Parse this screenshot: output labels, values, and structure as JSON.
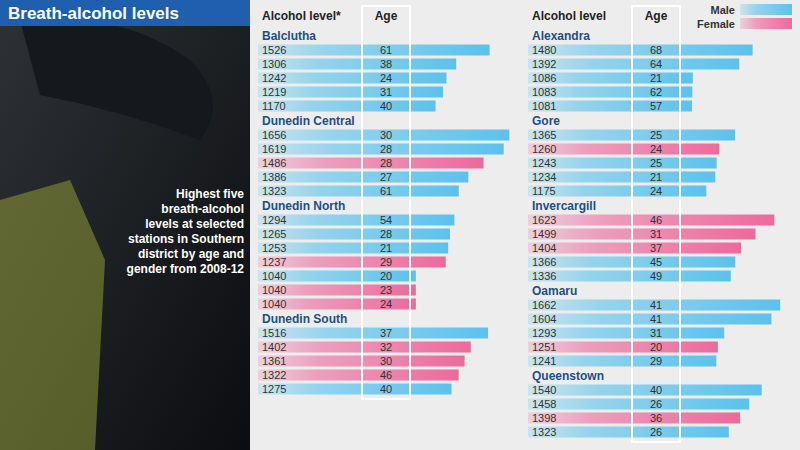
{
  "chart_data": {
    "type": "bar",
    "orientation": "horizontal",
    "title": "Breath-alcohol levels",
    "subtitle": "Highest five breath-alcohol levels at selected stations in Southern district by age and gender from 2008-12",
    "legend": "top-right",
    "data_labels": true,
    "tick_labels": false,
    "xlim": [
      0,
      1700
    ],
    "series": [
      {
        "name": "Male",
        "color": "#5bc2ec"
      },
      {
        "name": "Female",
        "color": "#ec6a9c"
      }
    ],
    "columns": [
      {
        "value_header": "Alcohol level*",
        "age_header": "Age",
        "stations": [
          {
            "name": "Balclutha",
            "values": [
              1526,
              1306,
              1242,
              1219,
              1170
            ],
            "ages": [
              61,
              38,
              24,
              31,
              40
            ],
            "genders": [
              "Male",
              "Male",
              "Male",
              "Male",
              "Male"
            ]
          },
          {
            "name": "Dunedin Central",
            "values": [
              1656,
              1619,
              1486,
              1386,
              1323
            ],
            "ages": [
              30,
              28,
              28,
              27,
              61
            ],
            "genders": [
              "Male",
              "Male",
              "Female",
              "Male",
              "Male"
            ]
          },
          {
            "name": "Dunedin North",
            "values": [
              1294,
              1265,
              1253,
              1237,
              1040,
              1040,
              1040
            ],
            "ages": [
              54,
              28,
              21,
              29,
              20,
              23,
              24
            ],
            "genders": [
              "Male",
              "Male",
              "Male",
              "Female",
              "Male",
              "Female",
              "Female"
            ]
          },
          {
            "name": "Dunedin South",
            "values": [
              1516,
              1402,
              1361,
              1322,
              1275
            ],
            "ages": [
              37,
              32,
              30,
              46,
              40
            ],
            "genders": [
              "Male",
              "Female",
              "Female",
              "Female",
              "Male"
            ]
          }
        ]
      },
      {
        "value_header": "Alcohol level",
        "age_header": "Age",
        "stations": [
          {
            "name": "Alexandra",
            "values": [
              1480,
              1392,
              1086,
              1083,
              1081
            ],
            "ages": [
              68,
              64,
              21,
              62,
              57
            ],
            "genders": [
              "Male",
              "Male",
              "Male",
              "Male",
              "Male"
            ]
          },
          {
            "name": "Gore",
            "values": [
              1365,
              1260,
              1243,
              1234,
              1175
            ],
            "ages": [
              25,
              24,
              25,
              21,
              24
            ],
            "genders": [
              "Male",
              "Female",
              "Male",
              "Male",
              "Male"
            ]
          },
          {
            "name": "Invercargill",
            "values": [
              1623,
              1499,
              1404,
              1366,
              1336
            ],
            "ages": [
              46,
              31,
              37,
              45,
              49
            ],
            "genders": [
              "Female",
              "Female",
              "Female",
              "Male",
              "Male"
            ]
          },
          {
            "name": "Oamaru",
            "values": [
              1662,
              1604,
              1293,
              1251,
              1241
            ],
            "ages": [
              41,
              41,
              31,
              20,
              29
            ],
            "genders": [
              "Male",
              "Male",
              "Male",
              "Female",
              "Male"
            ]
          },
          {
            "name": "Queenstown",
            "values": [
              1540,
              1458,
              1398,
              1323
            ],
            "ages": [
              40,
              26,
              36,
              26
            ],
            "genders": [
              "Male",
              "Male",
              "Female",
              "Male"
            ]
          }
        ]
      }
    ]
  }
}
